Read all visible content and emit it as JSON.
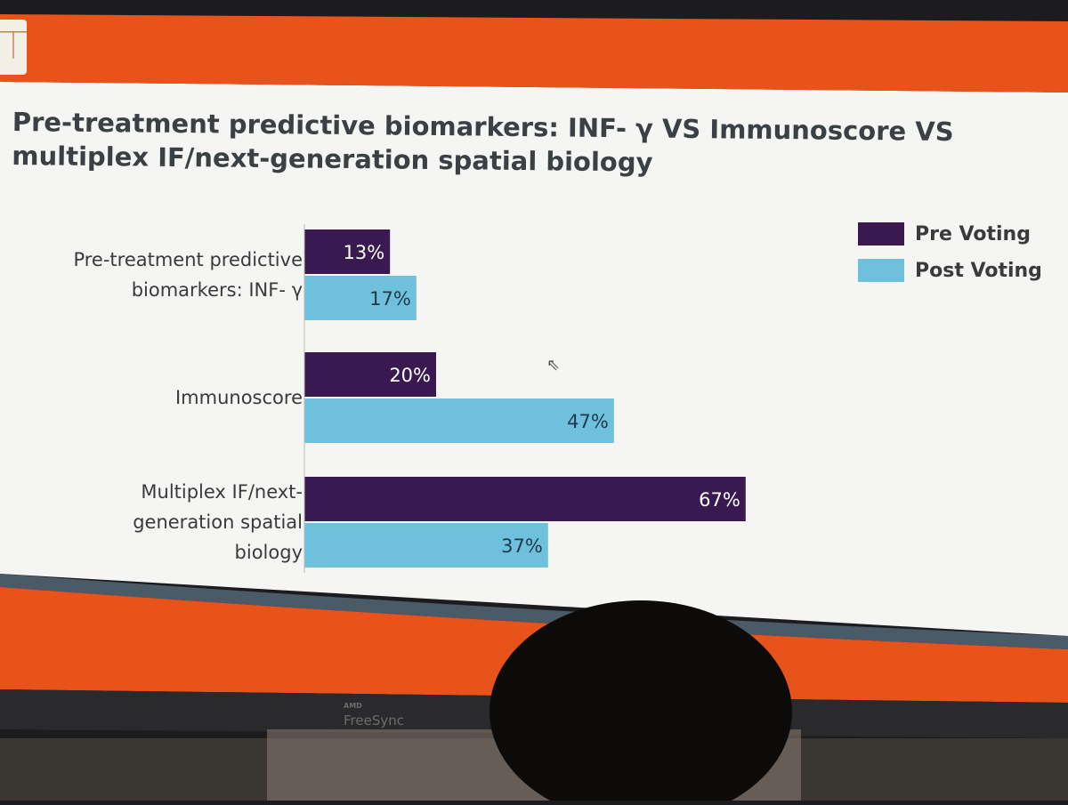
{
  "slide": {
    "logo_glyph": "⏉",
    "title": "Pre-treatment predictive biomarkers: INF- γ VS Immunoscore VS multiplex IF/next-generation spatial biology",
    "colors": {
      "header_orange": "#e8521b",
      "slide_bg": "#f5f5f4",
      "pre_voting": "#3a1850",
      "post_voting": "#6fc0dd",
      "title_text": "#3b4044"
    }
  },
  "chart_data": {
    "type": "bar",
    "orientation": "horizontal",
    "categories": [
      "Pre-treatment predictive biomarkers: INF- γ",
      "Immunoscore",
      "Multiplex IF/next-generation spatial biology"
    ],
    "category_label_lines": [
      [
        "Pre-treatment predictive",
        "biomarkers: INF- γ"
      ],
      [
        "Immunoscore"
      ],
      [
        "Multiplex IF/next-",
        "generation spatial",
        "biology"
      ]
    ],
    "series": [
      {
        "name": "Pre Voting",
        "values": [
          13,
          20,
          67
        ],
        "labels": [
          "13%",
          "20%",
          "67%"
        ],
        "color": "#3a1850"
      },
      {
        "name": "Post Voting",
        "values": [
          17,
          47,
          37
        ],
        "labels": [
          "17%",
          "47%",
          "37%"
        ],
        "color": "#6fc0dd"
      }
    ],
    "value_unit": "%",
    "xlim": [
      0,
      100
    ],
    "grid": false,
    "legend_position": "top-right"
  },
  "monitor": {
    "brand_top": "AMD",
    "brand_name": "FreeSync"
  }
}
